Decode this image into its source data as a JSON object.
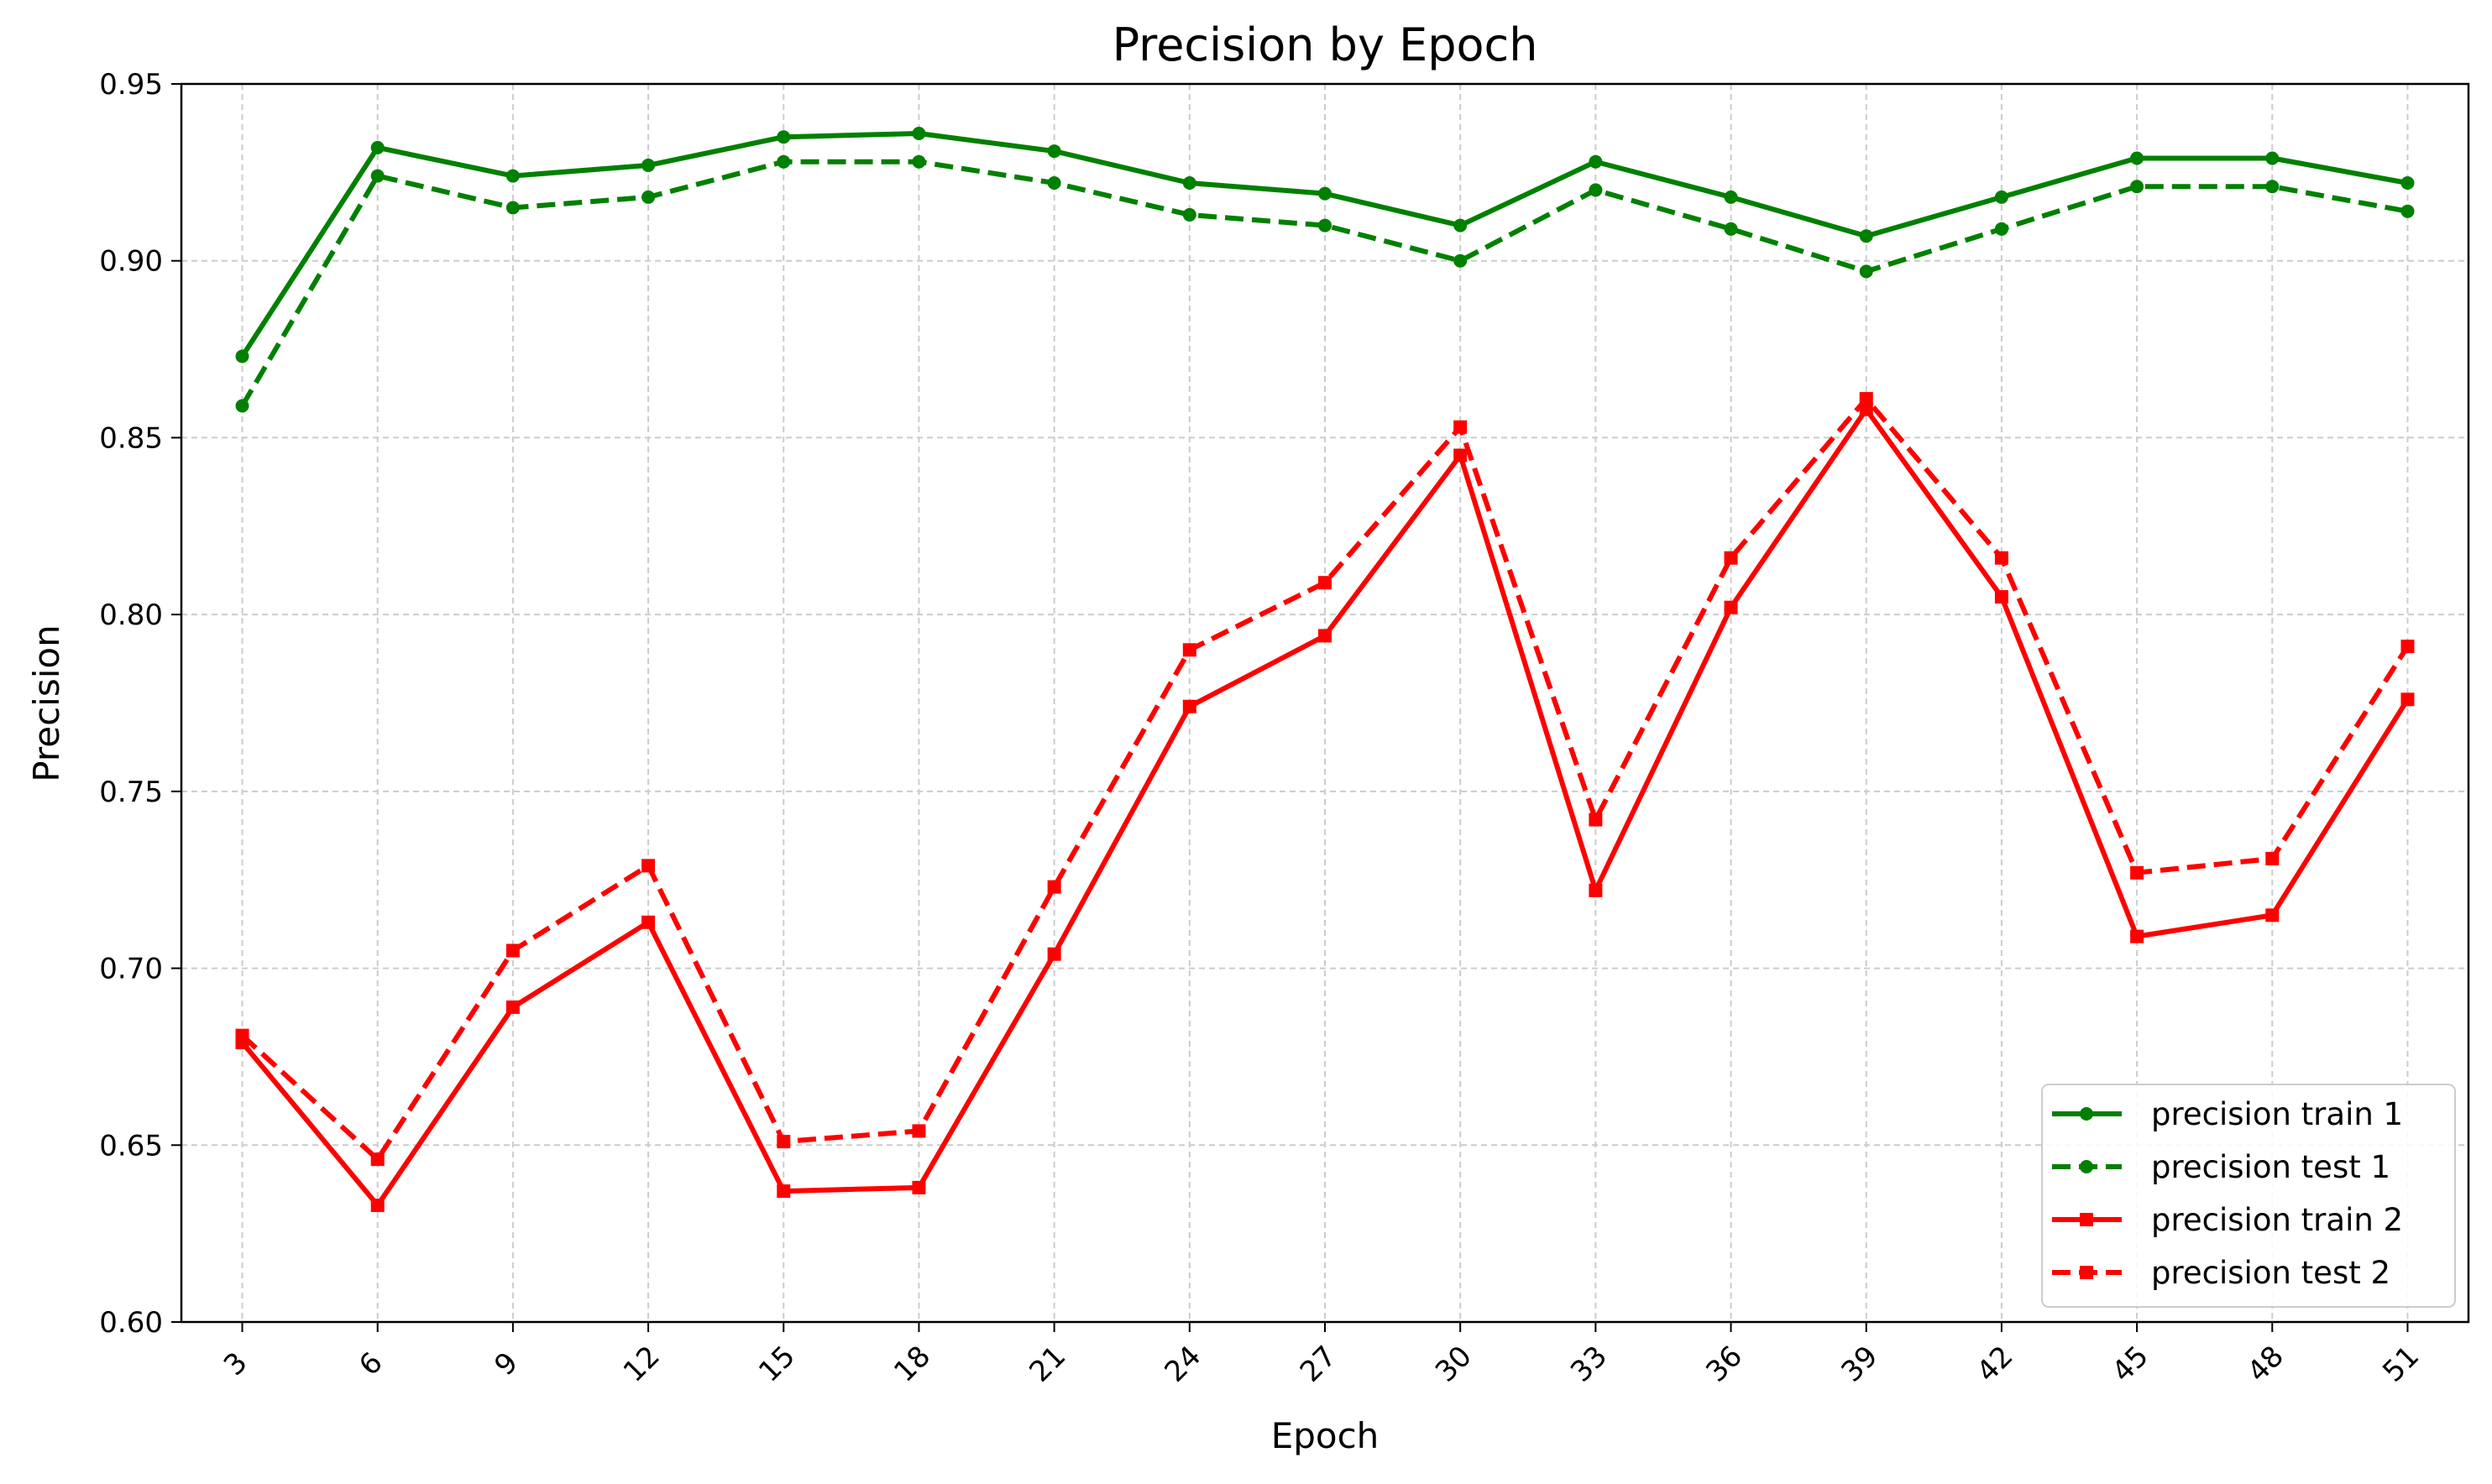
{
  "chart_data": {
    "type": "line",
    "title": "Precision by Epoch",
    "xlabel": "Epoch",
    "ylabel": "Precision",
    "x": [
      3,
      6,
      9,
      12,
      15,
      18,
      21,
      24,
      27,
      30,
      33,
      36,
      39,
      42,
      45,
      48,
      51
    ],
    "x_tick_labels": [
      "3",
      "6",
      "9",
      "12",
      "15",
      "18",
      "21",
      "24",
      "27",
      "30",
      "33",
      "36",
      "39",
      "42",
      "45",
      "48",
      "51"
    ],
    "ylim": [
      0.6,
      0.95
    ],
    "y_ticks": [
      0.6,
      0.65,
      0.7,
      0.75,
      0.8,
      0.85,
      0.9,
      0.95
    ],
    "y_tick_labels": [
      "0.60",
      "0.65",
      "0.70",
      "0.75",
      "0.80",
      "0.85",
      "0.90",
      "0.95"
    ],
    "grid": true,
    "legend_position": "bottom-right",
    "series": [
      {
        "name": "precision train 1",
        "color": "#008000",
        "style": "solid",
        "marker": "circle",
        "values": [
          0.873,
          0.932,
          0.924,
          0.927,
          0.935,
          0.936,
          0.931,
          0.922,
          0.919,
          0.91,
          0.928,
          0.918,
          0.907,
          0.918,
          0.929,
          0.929,
          0.922
        ]
      },
      {
        "name": "precision test 1",
        "color": "#008000",
        "style": "dashed",
        "marker": "circle",
        "values": [
          0.859,
          0.924,
          0.915,
          0.918,
          0.928,
          0.928,
          0.922,
          0.913,
          0.91,
          0.9,
          0.92,
          0.909,
          0.897,
          0.909,
          0.921,
          0.921,
          0.914
        ]
      },
      {
        "name": "precision train 2",
        "color": "#ff0000",
        "style": "solid",
        "marker": "square",
        "values": [
          0.679,
          0.633,
          0.689,
          0.713,
          0.637,
          0.638,
          0.704,
          0.774,
          0.794,
          0.845,
          0.722,
          0.802,
          0.858,
          0.805,
          0.709,
          0.715,
          0.776
        ]
      },
      {
        "name": "precision test 2",
        "color": "#ff0000",
        "style": "dashed",
        "marker": "square",
        "values": [
          0.681,
          0.646,
          0.705,
          0.729,
          0.651,
          0.654,
          0.723,
          0.79,
          0.809,
          0.853,
          0.742,
          0.816,
          0.861,
          0.816,
          0.727,
          0.731,
          0.791
        ]
      }
    ]
  }
}
